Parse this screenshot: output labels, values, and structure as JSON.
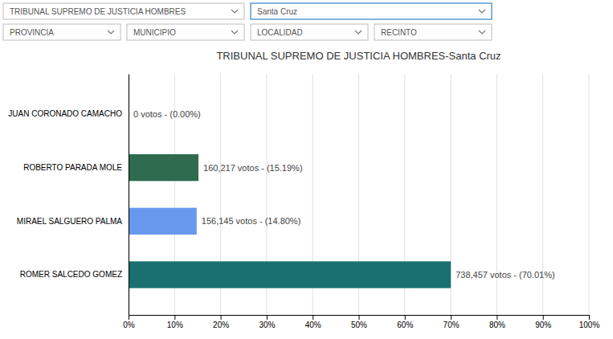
{
  "chart_data": {
    "type": "bar",
    "orientation": "horizontal",
    "title": "TRIBUNAL SUPREMO DE JUSTICIA HOMBRES-Santa Cruz",
    "categories": [
      "JUAN CORONADO CAMACHO",
      "ROBERTO PARADA MOLE",
      "MIRAEL SALGUERO PALMA",
      "ROMER SALCEDO GOMEZ"
    ],
    "values": [
      0.0,
      15.19,
      14.8,
      70.01
    ],
    "value_labels": [
      "0 votos - (0.00%)",
      "160,217 votos - (15.19%)",
      "156,145 votos - (14.80%)",
      "738,457 votos - (70.01%)"
    ],
    "data_labels": true,
    "colors": [
      "#2e7d32",
      "#2e6b4f",
      "#6699ee",
      "#1a7070"
    ],
    "xlim": [
      0,
      100
    ],
    "xticks": [
      {
        "value": 0,
        "label": "0%"
      },
      {
        "value": 10,
        "label": "10%"
      },
      {
        "value": 20,
        "label": "20%"
      },
      {
        "value": 30,
        "label": "30%"
      },
      {
        "value": 40,
        "label": "40%"
      },
      {
        "value": 50,
        "label": "50%"
      },
      {
        "value": 60,
        "label": "60%"
      },
      {
        "value": 70,
        "label": "70%"
      },
      {
        "value": 80,
        "label": "80%"
      },
      {
        "value": 90,
        "label": "90%"
      },
      {
        "value": 100,
        "label": "100%"
      }
    ],
    "grid": true,
    "annotations": [
      "TRIBUNAL SUPREMO DE JUSTICIA HOMBRES",
      "Santa Cruz",
      "PROVINCIA",
      "MUNICIPIO",
      "LOCALIDAD",
      "RECINTO"
    ]
  }
}
